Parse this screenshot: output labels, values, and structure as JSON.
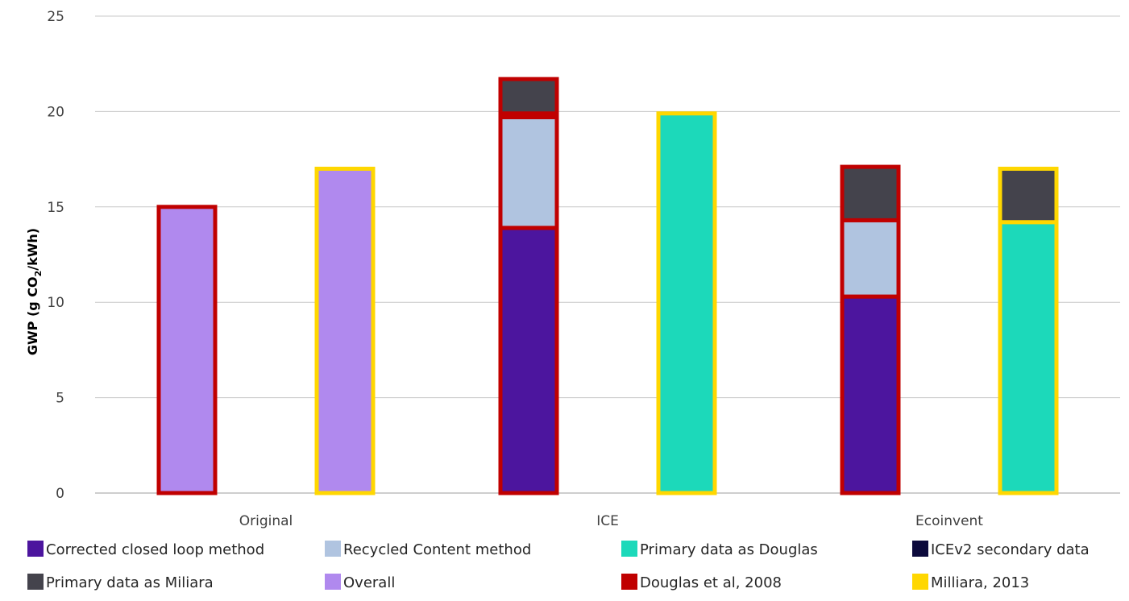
{
  "chart_data": {
    "type": "bar",
    "subtype": "stacked-grouped",
    "title": "",
    "xlabel": "",
    "ylabel_parts": [
      "GWP (g CO",
      "2",
      "/kWh)"
    ],
    "ylim": [
      0,
      25
    ],
    "yticks": [
      0,
      5,
      10,
      15,
      20,
      25
    ],
    "grid": true,
    "legend_position": "bottom",
    "categories": [
      "Original",
      "ICE",
      "Ecoinvent"
    ],
    "colors": {
      "Corrected closed loop method": "#4C159E",
      "Recycled Content method": "#B0C4E0",
      "Primary data as Douglas": "#1CD9BA",
      "ICEv2 secondary data": "#0C0A3C",
      "Primary data as Miliara": "#44434C",
      "Overall": "#B089EE",
      "Douglas et al, 2008": "#C00000",
      "Milliara, 2013": "#FFD700"
    },
    "legend": [
      {
        "name": "Corrected closed loop method",
        "color": "#4C159E"
      },
      {
        "name": "Recycled Content method",
        "color": "#B0C4E0"
      },
      {
        "name": "Primary data as Douglas",
        "color": "#1CD9BA"
      },
      {
        "name": "ICEv2 secondary data",
        "color": "#0C0A3C"
      },
      {
        "name": "Primary data as Miliara",
        "color": "#44434C"
      },
      {
        "name": "Overall",
        "color": "#B089EE"
      },
      {
        "name": "Douglas et al, 2008",
        "color": "#C00000"
      },
      {
        "name": "Milliara, 2013",
        "color": "#FFD700"
      }
    ],
    "bars": [
      {
        "category": "Original",
        "outline": "Douglas et al, 2008",
        "stack": [
          {
            "series": "Overall",
            "value": 15.0
          }
        ]
      },
      {
        "category": "Original",
        "outline": "Milliara, 2013",
        "stack": [
          {
            "series": "Overall",
            "value": 17.0
          }
        ]
      },
      {
        "category": "ICE",
        "outline": "Douglas et al, 2008",
        "stack": [
          {
            "series": "Corrected closed loop method",
            "value": 13.9
          },
          {
            "series": "Recycled Content method",
            "value": 5.8
          },
          {
            "series": "ICEv2 secondary data",
            "value": 0.2
          },
          {
            "series": "Primary data as Miliara",
            "value": 1.8
          }
        ]
      },
      {
        "category": "ICE",
        "outline": "Milliara, 2013",
        "stack": [
          {
            "series": "Primary data as Douglas",
            "value": 19.9
          }
        ]
      },
      {
        "category": "Ecoinvent",
        "outline": "Douglas et al, 2008",
        "stack": [
          {
            "series": "Corrected closed loop method",
            "value": 10.3
          },
          {
            "series": "Recycled Content method",
            "value": 4.0
          },
          {
            "series": "Primary data as Miliara",
            "value": 2.8
          }
        ]
      },
      {
        "category": "Ecoinvent",
        "outline": "Milliara, 2013",
        "stack": [
          {
            "series": "Primary data as Douglas",
            "value": 14.2
          },
          {
            "series": "Primary data as Miliara",
            "value": 2.8
          }
        ]
      }
    ]
  }
}
